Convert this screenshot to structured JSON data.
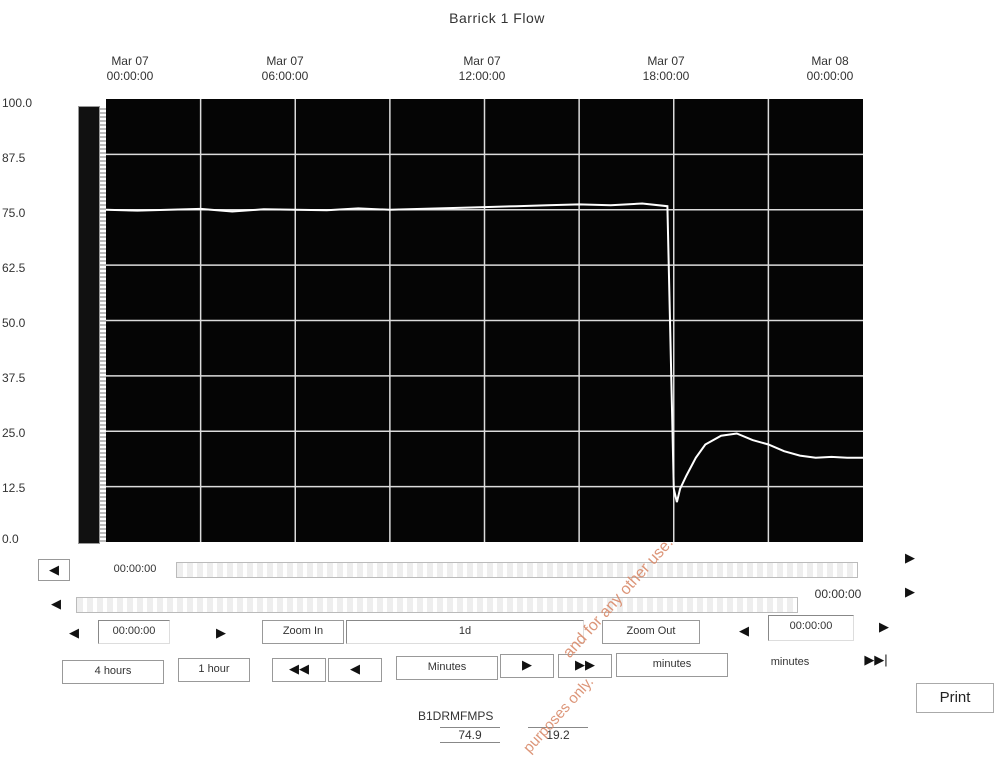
{
  "chart_data": {
    "type": "line",
    "title": "Barrick 1 Flow",
    "x_tick_labels": [
      [
        "Mar 07",
        "00:00:00"
      ],
      [
        "Mar 07",
        "06:00:00"
      ],
      [
        "Mar 07",
        "12:00:00"
      ],
      [
        "Mar 07",
        "18:00:00"
      ],
      [
        "Mar 08",
        "00:00:00"
      ]
    ],
    "y_tick_labels": [
      "100.0",
      "87.5",
      "75.0",
      "62.5",
      "50.0",
      "37.5",
      "25.0",
      "12.5",
      "0.0"
    ],
    "ylim": [
      0,
      100
    ],
    "xlim_hours": [
      0,
      24
    ],
    "grid": true,
    "series": [
      {
        "tag": "B1DRMFMPS",
        "color": "#ffffff",
        "x_hours": [
          0,
          1,
          2,
          3,
          4,
          5,
          6,
          7,
          8,
          9,
          10,
          11,
          12,
          13,
          14,
          15,
          16,
          17,
          17.8,
          18.0,
          18.1,
          18.2,
          18.4,
          18.7,
          19.0,
          19.5,
          20.0,
          20.5,
          21.0,
          21.5,
          22.0,
          22.5,
          23.0,
          23.5,
          24.0
        ],
        "values": [
          75.0,
          74.8,
          75.0,
          75.2,
          74.6,
          75.1,
          75.0,
          74.9,
          75.3,
          75.0,
          75.2,
          75.4,
          75.6,
          75.8,
          76.0,
          76.2,
          76.0,
          76.4,
          75.8,
          12.0,
          9.0,
          12.0,
          15.0,
          19.0,
          22.0,
          24.0,
          24.5,
          23.0,
          22.0,
          20.5,
          19.5,
          19.0,
          19.2,
          19.0,
          19.0
        ]
      }
    ]
  },
  "controls": {
    "scroll_top_time": "00:00:00",
    "scroll_bottom_time": "00:00:00",
    "start_time": "00:00:00",
    "zoom_in": "Zoom In",
    "duration": "1d",
    "zoom_out": "Zoom Out",
    "end_time": "00:00:00",
    "range_4h": "4 hours",
    "range_1h": "1 hour",
    "minutes_left": "Minutes",
    "minutes_right": "minutes",
    "minutes_right2": "minutes",
    "print": "Print",
    "left_arrow": "◀",
    "right_arrow": "▶",
    "double_left": "◀◀",
    "double_right": "▶▶",
    "end_right": "▶▶|"
  },
  "legend": {
    "tag_name": "B1DRMFMPS",
    "value_current": "74.9",
    "value_other": "19.2"
  },
  "watermark": {
    "line1": "purposes only.",
    "line2": "and for any other use."
  }
}
